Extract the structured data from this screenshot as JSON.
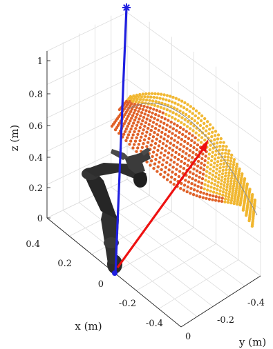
{
  "chart_data": {
    "type": "scatter",
    "projection": "3d",
    "title": "",
    "axes": {
      "x": {
        "label": "x (m)",
        "ticks": [
          "0.4",
          "0.2",
          "0",
          "-0.2",
          "-0.4"
        ]
      },
      "y": {
        "label": "y (m)",
        "ticks": [
          "-0.4",
          "-0.2",
          "0"
        ]
      },
      "z": {
        "label": "z (m)",
        "ticks": [
          "1",
          "0.8",
          "0.6",
          "0.4",
          "0.2",
          "0"
        ],
        "range": [
          0,
          1.05
        ]
      }
    },
    "grid": true,
    "series": [
      {
        "kind": "point-cloud",
        "color": "#f0b429",
        "description_points": "workspace surface, outer band"
      },
      {
        "kind": "point-cloud",
        "color": "#de5a1e",
        "description_points": "workspace surface, inner band"
      },
      {
        "kind": "vector",
        "color": "#1f1fe0",
        "from": [
          0,
          0,
          0
        ],
        "to": [
          0,
          0,
          1.15
        ],
        "marker": "asterisk"
      },
      {
        "kind": "vector",
        "color": "#ee1111",
        "from": [
          0,
          0,
          0
        ],
        "to_z": 0.45,
        "marker": "arrow"
      }
    ],
    "robot": {
      "color": "#2b2b2b",
      "name_icon": "robot-arm-icon"
    },
    "colors": {
      "outer": "#f0b429",
      "inner": "#de5a1e",
      "blue": "#1f1fe0",
      "red": "#ee1111",
      "robot": "#2b2b2b"
    }
  }
}
